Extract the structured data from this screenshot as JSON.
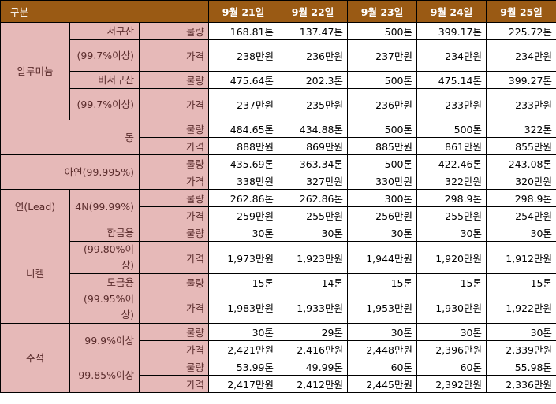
{
  "header": {
    "category": "구분",
    "dates": [
      "9월 21일",
      "9월 22일",
      "9월 23일",
      "9월 24일",
      "9월 25일"
    ]
  },
  "labels": {
    "qty": "물량",
    "price": "가격"
  },
  "metals": {
    "aluminum": {
      "name": "알루미늄",
      "western_south": {
        "name": "서구산",
        "purity": "(99.7%이상)",
        "qty": [
          "168.81톤",
          "137.47톤",
          "500톤",
          "399.17톤",
          "225.72톤"
        ],
        "price": [
          "238만원",
          "236만원",
          "237만원",
          "234만원",
          "234만원"
        ]
      },
      "non_western_south": {
        "name": "비서구산",
        "purity": "(99.7%이상)",
        "qty": [
          "475.64톤",
          "202.3톤",
          "500톤",
          "475.14톤",
          "399.27톤"
        ],
        "price": [
          "237만원",
          "235만원",
          "236만원",
          "233만원",
          "233만원"
        ]
      }
    },
    "copper": {
      "name": "동",
      "qty": [
        "484.65톤",
        "434.88톤",
        "500톤",
        "500톤",
        "322톤"
      ],
      "price": [
        "888만원",
        "869만원",
        "885만원",
        "861만원",
        "855만원"
      ]
    },
    "zinc": {
      "name": "아연(99.995%)",
      "qty": [
        "435.69톤",
        "363.34톤",
        "500톤",
        "422.46톤",
        "243.08톤"
      ],
      "price": [
        "338만원",
        "327만원",
        "330만원",
        "322만원",
        "320만원"
      ]
    },
    "lead": {
      "name": "연(Lead)",
      "grade": "4N(99.99%)",
      "qty": [
        "262.86톤",
        "262.86톤",
        "300톤",
        "298.9톤",
        "298.9톤"
      ],
      "price": [
        "259만원",
        "255만원",
        "256만원",
        "255만원",
        "254만원"
      ]
    },
    "nickel": {
      "name": "니켈",
      "alloy": {
        "name": "합금용",
        "purity": "(99.80%이상)",
        "qty": [
          "30톤",
          "30톤",
          "30톤",
          "30톤",
          "30톤"
        ],
        "price": [
          "1,973만원",
          "1,923만원",
          "1,944만원",
          "1,920만원",
          "1,912만원"
        ]
      },
      "plating": {
        "name": "도금용",
        "purity": "(99.95%이상)",
        "qty": [
          "15톤",
          "14톤",
          "15톤",
          "15톤",
          "15톤"
        ],
        "price": [
          "1,983만원",
          "1,933만원",
          "1,953만원",
          "1,930만원",
          "1,922만원"
        ]
      }
    },
    "tin": {
      "name": "주석",
      "grade1": {
        "name": "99.9%이상",
        "qty": [
          "30톤",
          "29톤",
          "30톤",
          "30톤",
          "30톤"
        ],
        "price": [
          "2,421만원",
          "2,416만원",
          "2,448만원",
          "2,396만원",
          "2,339만원"
        ]
      },
      "grade2": {
        "name": "99.85%이상",
        "qty": [
          "53.99톤",
          "49.99톤",
          "60톤",
          "60톤",
          "55.98톤"
        ],
        "price": [
          "2,417만원",
          "2,412만원",
          "2,445만원",
          "2,392만원",
          "2,336만원"
        ]
      }
    }
  }
}
